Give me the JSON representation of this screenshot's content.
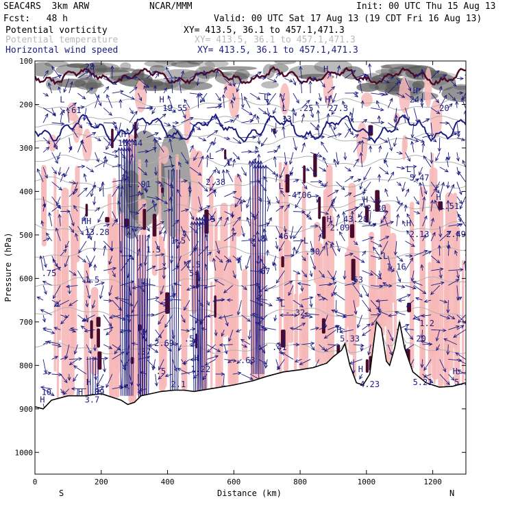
{
  "header": {
    "title_left": "SEAC4RS  3km ARW",
    "title_center": "NCAR/MMM",
    "init": "Init: 00 UTC Thu 15 Aug 13",
    "fcst": "Fcst:   48 h",
    "valid": "Valid: 00 UTC Sat 17 Aug 13 (19 CDT Fri 16 Aug 13)",
    "field1_name": "Potential vorticity",
    "field1_xy": "XY= 413.5, 36.1 to 457.1,471.3",
    "field2_name": "Potential temperature",
    "field2_xy": "XY= 413.5, 36.1 to 457.1,471.3",
    "field3_name": "Horizontal wind speed",
    "field3_xy": "XY= 413.5, 36.1 to 457.1,471.3"
  },
  "colors": {
    "pv_fill": "#f6b8b8",
    "wind_shade": "#555555",
    "theta": "#b0b0b0",
    "wind": "#1a1a80",
    "pv_contour": "#4a0a2a",
    "terrain": "#000000"
  },
  "chart_data": {
    "type": "heatmap",
    "title": "",
    "xlabel": "Distance (km)",
    "ylabel": "Pressure (hPa)",
    "xlim": [
      0,
      1300
    ],
    "ylim": [
      1050,
      100
    ],
    "x_ticks": [
      "0",
      "200",
      "400",
      "600",
      "800",
      "1000",
      "1200"
    ],
    "y_ticks": [
      "100",
      "200",
      "300",
      "400",
      "500",
      "600",
      "700",
      "800",
      "900",
      "1000"
    ],
    "direction_left": "S",
    "direction_right": "N",
    "terrain_surface": [
      [
        0,
        895
      ],
      [
        25,
        900
      ],
      [
        50,
        880
      ],
      [
        100,
        870
      ],
      [
        150,
        870
      ],
      [
        200,
        865
      ],
      [
        260,
        880
      ],
      [
        280,
        890
      ],
      [
        300,
        885
      ],
      [
        320,
        870
      ],
      [
        350,
        865
      ],
      [
        380,
        860
      ],
      [
        420,
        857
      ],
      [
        450,
        857
      ],
      [
        480,
        860
      ],
      [
        520,
        855
      ],
      [
        560,
        850
      ],
      [
        600,
        845
      ],
      [
        660,
        835
      ],
      [
        700,
        825
      ],
      [
        750,
        815
      ],
      [
        800,
        810
      ],
      [
        840,
        805
      ],
      [
        880,
        795
      ],
      [
        900,
        780
      ],
      [
        925,
        765
      ],
      [
        935,
        750
      ],
      [
        950,
        800
      ],
      [
        970,
        840
      ],
      [
        990,
        845
      ],
      [
        1010,
        820
      ],
      [
        1020,
        760
      ],
      [
        1030,
        700
      ],
      [
        1045,
        715
      ],
      [
        1060,
        790
      ],
      [
        1070,
        800
      ],
      [
        1085,
        760
      ],
      [
        1100,
        700
      ],
      [
        1115,
        760
      ],
      [
        1140,
        815
      ],
      [
        1180,
        840
      ],
      [
        1220,
        850
      ],
      [
        1260,
        848
      ],
      [
        1300,
        840
      ]
    ],
    "labels": [
      {
        "t": "28",
        "x": 150,
        "p": 120
      },
      {
        "t": "L",
        "x": 75,
        "p": 195
      },
      {
        "t": "-.61",
        "x": 80,
        "p": 220
      },
      {
        "t": "H",
        "x": 375,
        "p": 195
      },
      {
        "t": "19.55",
        "x": 385,
        "p": 215
      },
      {
        "t": "H",
        "x": 260,
        "p": 275
      },
      {
        "t": "16.44",
        "x": 250,
        "p": 295
      },
      {
        "t": "L",
        "x": 280,
        "p": 390
      },
      {
        "t": ".91",
        "x": 305,
        "p": 390
      },
      {
        "t": "2.38",
        "x": 515,
        "p": 385
      },
      {
        "t": "L",
        "x": 735,
        "p": 395
      },
      {
        "t": "-4.06",
        "x": 760,
        "p": 415
      },
      {
        "t": "HH",
        "x": 140,
        "p": 475
      },
      {
        "t": "13.28",
        "x": 150,
        "p": 500
      },
      {
        "t": "1.5",
        "x": 335,
        "p": 540
      },
      {
        "t": "1.5",
        "x": 410,
        "p": 520
      },
      {
        "t": ".5",
        "x": 515,
        "p": 470
      },
      {
        "t": "-2.5",
        "x": 640,
        "p": 515
      },
      {
        "t": "8",
        "x": 680,
        "p": 515
      },
      {
        "t": ".46",
        "x": 720,
        "p": 510
      },
      {
        "t": "H",
        "x": 880,
        "p": 470
      },
      {
        "t": "2.09",
        "x": 890,
        "p": 490
      },
      {
        "t": "43.28",
        "x": 930,
        "p": 470
      },
      {
        "t": "H",
        "x": 990,
        "p": 425
      },
      {
        "t": "2.30",
        "x": 1000,
        "p": 445
      },
      {
        "t": "L",
        "x": 1120,
        "p": 355
      },
      {
        "t": "5.47",
        "x": 1130,
        "p": 375
      },
      {
        "t": "H",
        "x": 1210,
        "p": 420
      },
      {
        "t": "1.51",
        "x": 1220,
        "p": 440
      },
      {
        "t": "H",
        "x": 1120,
        "p": 480
      },
      {
        "t": "2.13",
        "x": 1130,
        "p": 505
      },
      {
        "t": "2.49",
        "x": 1240,
        "p": 505
      },
      {
        "t": "L",
        "x": 810,
        "p": 520
      },
      {
        "t": ".90",
        "x": 815,
        "p": 545
      },
      {
        "t": ".75",
        "x": 20,
        "p": 595
      },
      {
        "t": "1.5",
        "x": 150,
        "p": 610
      },
      {
        "t": "1.5",
        "x": 455,
        "p": 575
      },
      {
        "t": "54",
        "x": 465,
        "p": 595
      },
      {
        "t": ".67",
        "x": 665,
        "p": 590
      },
      {
        "t": "63",
        "x": 960,
        "p": 610
      },
      {
        "t": "L",
        "x": 1050,
        "p": 555
      },
      {
        "t": "1.16",
        "x": 1060,
        "p": 580
      },
      {
        "t": "L",
        "x": 740,
        "p": 665
      },
      {
        "t": "-.32",
        "x": 755,
        "p": 685
      },
      {
        "t": "H",
        "x": 325,
        "p": 730
      },
      {
        "t": "2.69",
        "x": 360,
        "p": 755
      },
      {
        "t": ".37",
        "x": 305,
        "p": 775
      },
      {
        "t": ".54",
        "x": 450,
        "p": 745
      },
      {
        "t": ".41",
        "x": 715,
        "p": 765
      },
      {
        "t": ".63",
        "x": 620,
        "p": 795
      },
      {
        "t": "H",
        "x": 910,
        "p": 725
      },
      {
        "t": "5.33",
        "x": 920,
        "p": 745
      },
      {
        "t": "1.2",
        "x": 1160,
        "p": 710
      },
      {
        "t": "20",
        "x": 1150,
        "p": 745
      },
      {
        "t": "H",
        "x": 480,
        "p": 790
      },
      {
        "t": "1.22",
        "x": 470,
        "p": 815
      },
      {
        "t": ".5",
        "x": 365,
        "p": 820
      },
      {
        "t": "2.1",
        "x": 410,
        "p": 850
      },
      {
        "t": "H",
        "x": 975,
        "p": 815
      },
      {
        "t": "4.23",
        "x": 980,
        "p": 850
      },
      {
        "t": "5.21",
        "x": 1140,
        "p": 845
      },
      {
        "t": "H",
        "x": 1260,
        "p": 820
      },
      {
        "t": "5.2",
        "x": 1265,
        "p": 845
      },
      {
        "t": "H",
        "x": 155,
        "p": 845
      },
      {
        "t": "H",
        "x": 130,
        "p": 868
      },
      {
        "t": ".89",
        "x": 165,
        "p": 868
      },
      {
        "t": "3.7",
        "x": 150,
        "p": 885
      },
      {
        "t": "10",
        "x": 20,
        "p": 868
      },
      {
        "t": "H",
        "x": 15,
        "p": 885
      },
      {
        "t": "L",
        "x": 525,
        "p": 325
      },
      {
        "t": "L",
        "x": 580,
        "p": 340
      },
      {
        "t": "H",
        "x": 870,
        "p": 125
      },
      {
        "t": "H",
        "x": 1140,
        "p": 175
      },
      {
        "t": "24",
        "x": 1130,
        "p": 195
      },
      {
        "t": "20",
        "x": 1220,
        "p": 215
      },
      {
        "t": "L",
        "x": 745,
        "p": 215
      },
      {
        "t": ".25",
        "x": 795,
        "p": 215
      },
      {
        "t": "L",
        "x": 690,
        "p": 190
      },
      {
        "t": "13",
        "x": 745,
        "p": 240
      },
      {
        "t": "27.3",
        "x": 885,
        "p": 215
      },
      {
        "t": "H",
        "x": 875,
        "p": 195
      },
      {
        "t": "9",
        "x": 1005,
        "p": 265
      }
    ]
  }
}
